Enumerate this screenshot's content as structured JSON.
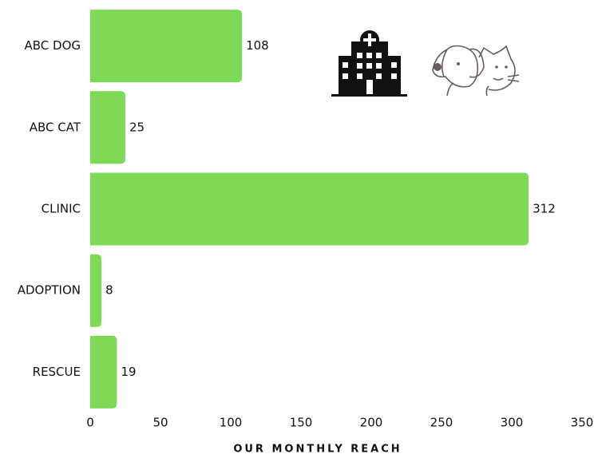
{
  "chart_data": {
    "type": "bar",
    "orientation": "horizontal",
    "x_label": "OUR MONTHLY REACH",
    "categories": [
      "ABC DOG",
      "ABC CAT",
      "CLINIC",
      "ADOPTION",
      "RESCUE"
    ],
    "values": [
      108,
      25,
      312,
      8,
      19
    ],
    "color": "#7ed957",
    "xlim": [
      0,
      350
    ],
    "xticks": [
      0,
      50,
      100,
      150,
      200,
      250,
      300,
      350
    ]
  }
}
